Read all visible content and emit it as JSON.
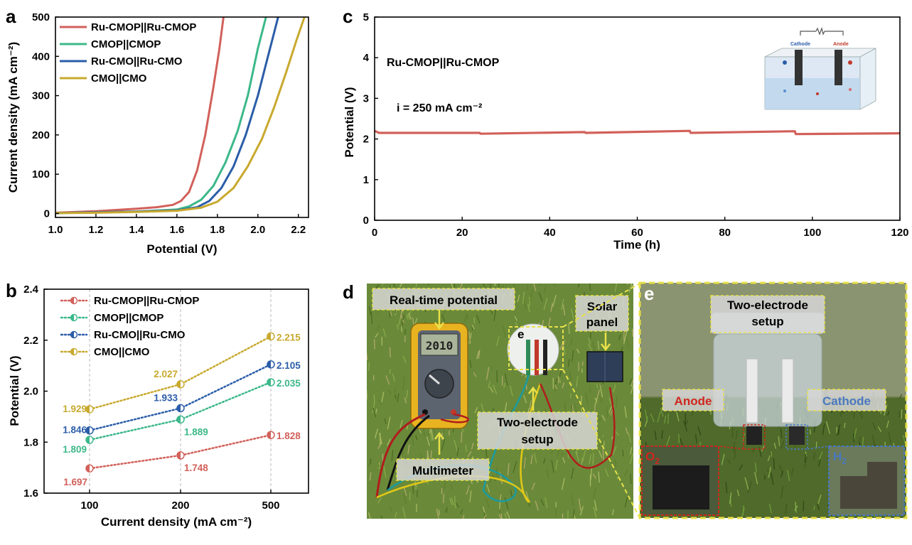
{
  "panels": {
    "a": {
      "letter": "a"
    },
    "b": {
      "letter": "b"
    },
    "c": {
      "letter": "c",
      "annotation_title": "Ru-CMOP||Ru-CMOP",
      "annotation_current": "i = 250 mA cm⁻²"
    },
    "d": {
      "letter": "d"
    },
    "e": {
      "letter": "e"
    }
  },
  "colors": {
    "ru_cmop": "#d2605a",
    "cmop": "#3cb88a",
    "ru_cmo": "#2b5da8",
    "cmo": "#c8a92e"
  },
  "chart_data": [
    {
      "type": "line",
      "panel": "a",
      "xlabel": "Potential (V)",
      "ylabel": "Current density (mA cm⁻²)",
      "xlim": [
        1.0,
        2.25
      ],
      "ylim": [
        -10,
        500
      ],
      "xticks": [
        "1.0",
        "1.2",
        "1.4",
        "1.6",
        "1.8",
        "2.0",
        "2.2"
      ],
      "yticks": [
        "0",
        "100",
        "200",
        "300",
        "400",
        "500"
      ],
      "legend_position": "top-left",
      "series": [
        {
          "name": "Ru-CMOP||Ru-CMOP",
          "x": [
            1.0,
            1.2,
            1.4,
            1.5,
            1.58,
            1.62,
            1.66,
            1.7,
            1.74,
            1.78,
            1.81,
            1.83
          ],
          "y": [
            2,
            6,
            12,
            16,
            22,
            32,
            55,
            110,
            200,
            320,
            420,
            500
          ]
        },
        {
          "name": "CMOP||CMOP",
          "x": [
            1.0,
            1.2,
            1.4,
            1.6,
            1.66,
            1.72,
            1.78,
            1.84,
            1.9,
            1.95,
            2.0,
            2.04
          ],
          "y": [
            1,
            3,
            5,
            10,
            18,
            35,
            70,
            130,
            210,
            300,
            420,
            500
          ]
        },
        {
          "name": "Ru-CMO||Ru-CMO",
          "x": [
            1.0,
            1.2,
            1.4,
            1.6,
            1.7,
            1.76,
            1.82,
            1.88,
            1.94,
            2.0,
            2.05,
            2.1
          ],
          "y": [
            1,
            3,
            5,
            8,
            16,
            32,
            65,
            120,
            200,
            300,
            400,
            500
          ]
        },
        {
          "name": "CMO||CMO",
          "x": [
            1.0,
            1.2,
            1.4,
            1.6,
            1.72,
            1.8,
            1.88,
            1.95,
            2.02,
            2.08,
            2.14,
            2.19,
            2.23
          ],
          "y": [
            1,
            2,
            4,
            7,
            15,
            30,
            65,
            120,
            190,
            270,
            360,
            440,
            500
          ]
        }
      ]
    },
    {
      "type": "line",
      "panel": "c",
      "xlabel": "Time (h)",
      "ylabel": "Potential (V)",
      "xlim": [
        0,
        120
      ],
      "ylim": [
        0,
        5
      ],
      "xticks": [
        "0",
        "20",
        "40",
        "60",
        "80",
        "100",
        "120"
      ],
      "yticks": [
        "0",
        "1",
        "2",
        "3",
        "4",
        "5"
      ],
      "series": [
        {
          "x": [
            0,
            1,
            24,
            24.2,
            48,
            48.2,
            72,
            72.2,
            96,
            96.2,
            120
          ],
          "y": [
            2.2,
            2.15,
            2.15,
            2.13,
            2.17,
            2.15,
            2.2,
            2.15,
            2.19,
            2.12,
            2.14
          ]
        }
      ]
    },
    {
      "type": "line",
      "panel": "b",
      "xlabel": "Current density (mA cm⁻²)",
      "ylabel": "Potential (V)",
      "categories": [
        "100",
        "200",
        "500"
      ],
      "ylim": [
        1.6,
        2.4
      ],
      "yticks": [
        "1.6",
        "1.8",
        "2.0",
        "2.2",
        "2.4"
      ],
      "legend_position": "top-left",
      "series": [
        {
          "name": "Ru-CMOP||Ru-CMOP",
          "values": [
            1.697,
            1.748,
            1.828
          ],
          "labels": [
            "1.697",
            "1.748",
            "1.828"
          ]
        },
        {
          "name": "CMOP||CMOP",
          "values": [
            1.809,
            1.889,
            2.035
          ],
          "labels": [
            "1.809",
            "1.889",
            "2.035"
          ]
        },
        {
          "name": "Ru-CMO||Ru-CMO",
          "values": [
            1.846,
            1.933,
            2.105
          ],
          "labels": [
            "1.846",
            "1.933",
            "2.105"
          ]
        },
        {
          "name": "CMO||CMO",
          "values": [
            1.929,
            2.027,
            2.215
          ],
          "labels": [
            "1.929",
            "2.027",
            "2.215"
          ]
        }
      ]
    }
  ],
  "inset_c": {
    "cathode": "Cathode",
    "anode": "Anode"
  },
  "photo_d": {
    "realtime": "Real-time potential",
    "solar1": "Solar",
    "solar2": "panel",
    "two1": "Two-electrode",
    "two2": "setup",
    "multimeter": "Multimeter",
    "marker": "e",
    "display": "2010"
  },
  "photo_e": {
    "two1": "Two-electrode",
    "two2": "setup",
    "anode": "Anode",
    "cathode": "Cathode",
    "o2": "O",
    "o2_sub": "2",
    "h2": "H",
    "h2_sub": "2"
  }
}
